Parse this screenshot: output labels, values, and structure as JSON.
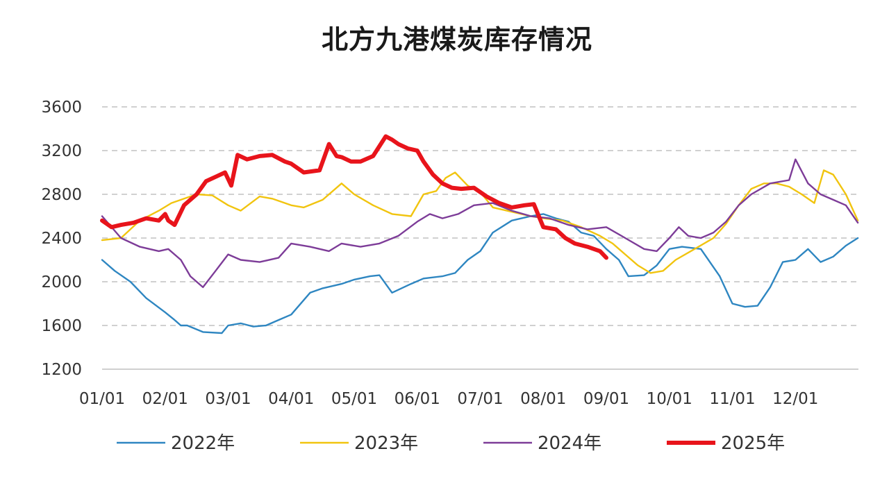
{
  "chart_data": {
    "type": "line",
    "title": "北方九港煤炭库存情况",
    "xlabel": "",
    "ylabel": "",
    "ylim": [
      1200,
      3600
    ],
    "yticks": [
      1200,
      1600,
      2000,
      2400,
      2800,
      3200,
      3600
    ],
    "grid": "horizontal dashed",
    "legend_position": "bottom",
    "categories": [
      "01/01",
      "02/01",
      "03/01",
      "04/01",
      "05/01",
      "06/01",
      "07/01",
      "08/01",
      "09/01",
      "10/01",
      "11/01",
      "12/01"
    ],
    "series": [
      {
        "name": "2022年",
        "color": "#2e86c1",
        "x": [
          0,
          0.2,
          0.45,
          0.7,
          1.0,
          1.15,
          1.25,
          1.35,
          1.6,
          1.9,
          2.0,
          2.2,
          2.4,
          2.6,
          2.8,
          3.0,
          3.3,
          3.5,
          3.8,
          4.0,
          4.25,
          4.4,
          4.6,
          4.9,
          5.1,
          5.4,
          5.6,
          5.8,
          6.0,
          6.2,
          6.5,
          6.8,
          7.0,
          7.2,
          7.4,
          7.6,
          7.8,
          8.0,
          8.2,
          8.35,
          8.6,
          8.8,
          9.0,
          9.2,
          9.5,
          9.8,
          10.0,
          10.2,
          10.4,
          10.6,
          10.8,
          11.0,
          11.2,
          11.4,
          11.6,
          11.8,
          11.99
        ],
        "values": [
          2200,
          2100,
          2000,
          1850,
          1720,
          1650,
          1600,
          1600,
          1540,
          1530,
          1600,
          1620,
          1590,
          1600,
          1650,
          1700,
          1900,
          1940,
          1980,
          2020,
          2050,
          2060,
          1900,
          1980,
          2030,
          2050,
          2080,
          2200,
          2280,
          2450,
          2560,
          2600,
          2620,
          2580,
          2550,
          2450,
          2420,
          2300,
          2200,
          2050,
          2060,
          2150,
          2300,
          2320,
          2300,
          2050,
          1800,
          1770,
          1780,
          1950,
          2180,
          2200,
          2300,
          2180,
          2230,
          2330,
          2400
        ]
      },
      {
        "name": "2023年",
        "color": "#f1c40f",
        "x": [
          0,
          0.3,
          0.6,
          0.9,
          1.1,
          1.3,
          1.5,
          1.75,
          2.0,
          2.2,
          2.5,
          2.7,
          3.0,
          3.2,
          3.5,
          3.8,
          4.0,
          4.3,
          4.6,
          4.9,
          5.1,
          5.3,
          5.45,
          5.6,
          5.8,
          6.0,
          6.2,
          6.5,
          6.8,
          7.0,
          7.3,
          7.6,
          7.9,
          8.1,
          8.3,
          8.5,
          8.7,
          8.9,
          9.1,
          9.4,
          9.7,
          9.9,
          10.1,
          10.3,
          10.5,
          10.7,
          10.9,
          11.1,
          11.3,
          11.45,
          11.6,
          11.8,
          11.99
        ],
        "values": [
          2380,
          2400,
          2560,
          2650,
          2720,
          2760,
          2800,
          2790,
          2700,
          2650,
          2780,
          2760,
          2700,
          2680,
          2750,
          2900,
          2800,
          2700,
          2620,
          2600,
          2800,
          2830,
          2950,
          3000,
          2880,
          2820,
          2680,
          2640,
          2600,
          2580,
          2560,
          2500,
          2420,
          2350,
          2250,
          2150,
          2080,
          2100,
          2200,
          2300,
          2400,
          2530,
          2700,
          2850,
          2900,
          2900,
          2870,
          2800,
          2720,
          3020,
          2980,
          2800,
          2560
        ]
      },
      {
        "name": "2024年",
        "color": "#7d3c98",
        "x": [
          0,
          0.3,
          0.6,
          0.9,
          1.05,
          1.25,
          1.4,
          1.6,
          1.8,
          2.0,
          2.2,
          2.5,
          2.8,
          3.0,
          3.3,
          3.6,
          3.8,
          4.1,
          4.4,
          4.7,
          5.0,
          5.2,
          5.4,
          5.65,
          5.9,
          6.2,
          6.5,
          6.8,
          7.1,
          7.4,
          7.7,
          8.0,
          8.3,
          8.6,
          8.8,
          9.0,
          9.15,
          9.3,
          9.5,
          9.7,
          9.9,
          10.1,
          10.3,
          10.6,
          10.9,
          11.0,
          11.2,
          11.4,
          11.6,
          11.8,
          11.99
        ],
        "values": [
          2600,
          2400,
          2320,
          2280,
          2300,
          2200,
          2050,
          1950,
          2100,
          2250,
          2200,
          2180,
          2220,
          2350,
          2320,
          2280,
          2350,
          2320,
          2350,
          2420,
          2550,
          2620,
          2580,
          2620,
          2700,
          2720,
          2650,
          2600,
          2580,
          2520,
          2480,
          2500,
          2400,
          2300,
          2280,
          2400,
          2500,
          2420,
          2400,
          2450,
          2550,
          2700,
          2800,
          2900,
          2930,
          3120,
          2900,
          2800,
          2750,
          2700,
          2540
        ]
      },
      {
        "name": "2025年",
        "color": "#e8141b",
        "x": [
          0,
          0.15,
          0.3,
          0.5,
          0.7,
          0.9,
          1.0,
          1.05,
          1.15,
          1.3,
          1.5,
          1.65,
          1.8,
          1.95,
          2.05,
          2.15,
          2.3,
          2.5,
          2.7,
          2.9,
          3.0,
          3.2,
          3.45,
          3.6,
          3.72,
          3.8,
          3.95,
          4.1,
          4.3,
          4.5,
          4.6,
          4.7,
          4.85,
          5.0,
          5.1,
          5.25,
          5.4,
          5.55,
          5.7,
          5.9,
          6.1,
          6.3,
          6.5,
          6.7,
          6.85,
          7.0,
          7.2,
          7.35,
          7.5,
          7.7,
          7.9,
          8.0
        ],
        "values": [
          2560,
          2500,
          2520,
          2540,
          2580,
          2560,
          2620,
          2560,
          2520,
          2700,
          2800,
          2920,
          2960,
          3000,
          2880,
          3160,
          3120,
          3150,
          3160,
          3100,
          3080,
          3000,
          3020,
          3260,
          3150,
          3140,
          3100,
          3100,
          3150,
          3330,
          3300,
          3260,
          3220,
          3200,
          3100,
          2980,
          2900,
          2860,
          2850,
          2860,
          2780,
          2720,
          2680,
          2700,
          2710,
          2500,
          2480,
          2400,
          2350,
          2320,
          2280,
          2220
        ]
      }
    ]
  }
}
